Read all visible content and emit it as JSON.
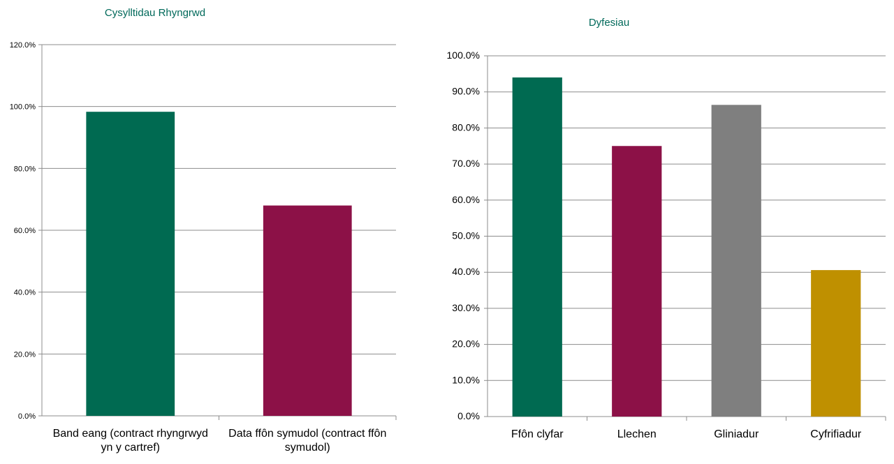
{
  "chart_data": [
    {
      "type": "bar",
      "title": "Cysylltidau Rhyngrwd",
      "categories": [
        [
          "Band eang (contract rhyngrwyd",
          "yn y cartref)"
        ],
        [
          "Data ffôn symudol (contract ffôn",
          "symudol)"
        ]
      ],
      "values": [
        98.3,
        68.0
      ],
      "ylim": [
        0,
        120
      ],
      "yticks": [
        0,
        20,
        40,
        60,
        80,
        100,
        120
      ],
      "ytick_labels": [
        "0.0%",
        "20.0%",
        "40.0%",
        "60.0%",
        "80.0%",
        "100.0%",
        "120.0%"
      ],
      "colors": [
        "#006a51",
        "#8c1147"
      ],
      "grid": true
    },
    {
      "type": "bar",
      "title": "Dyfesiau",
      "categories": [
        [
          "Ffôn clyfar"
        ],
        [
          "Llechen"
        ],
        [
          "Gliniadur"
        ],
        [
          "Cyfrifiadur"
        ]
      ],
      "values": [
        94.0,
        75.0,
        86.4,
        40.6
      ],
      "ylim": [
        0,
        100
      ],
      "yticks": [
        0,
        10,
        20,
        30,
        40,
        50,
        60,
        70,
        80,
        90,
        100
      ],
      "ytick_labels": [
        "0.0%",
        "10.0%",
        "20.0%",
        "30.0%",
        "40.0%",
        "50.0%",
        "60.0%",
        "70.0%",
        "80.0%",
        "90.0%",
        "100.0%"
      ],
      "colors": [
        "#006a51",
        "#8c1147",
        "#7f7f7f",
        "#bf9000"
      ],
      "grid": true
    }
  ]
}
